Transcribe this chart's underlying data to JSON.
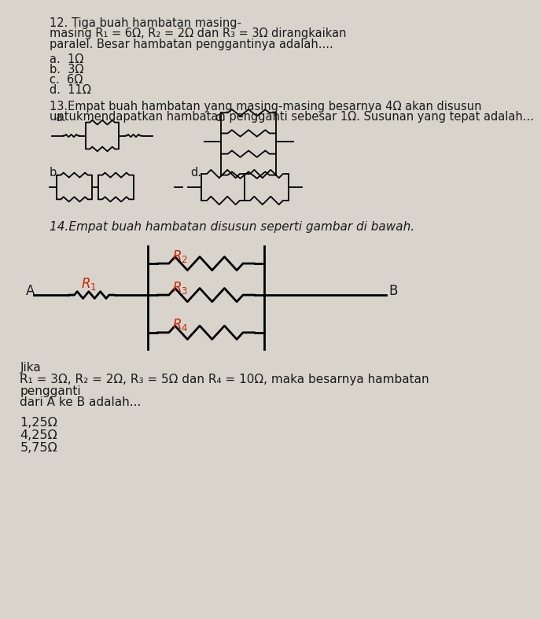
{
  "bg_color": "#d8d4cc",
  "text_color": "#1a1a1a",
  "red_color": "#cc2200",
  "q12_text_line1": "12. Tiga buah hambatan masing-",
  "q12_text_line2": "masing R₁ = 6Ω, R₂ = 2Ω dan R₃ = 3Ω dirangkaikan",
  "q12_text_line3": "paralel. Besar hambatan penggantinya adalah....",
  "q12_options": [
    "a.  1Ω",
    "b.  3Ω",
    "c.  6Ω",
    "d.  11Ω"
  ],
  "q13_line1": "13.Empat buah hambatan yang masing-masing besarnya 4Ω akan disusun",
  "q13_line2": "untukmendapatkan hambatan pengganti sebesar 1Ω. Susunan yang tepat adalah...",
  "q14_text": "14.Empat buah hambatan disusun seperti gambar di bawah.",
  "q14_jika": "Jika",
  "q14_formula": "R₁ = 3Ω, R₂ = 2Ω, R₃ = 5Ω dan R₄ = 10Ω, maka besarnya hambatan",
  "q14_formula2": "pengganti",
  "q14_dari": "dari A ke B adalah...",
  "q14_answers": [
    "1,25Ω",
    "4,25Ω",
    "5,75Ω"
  ]
}
